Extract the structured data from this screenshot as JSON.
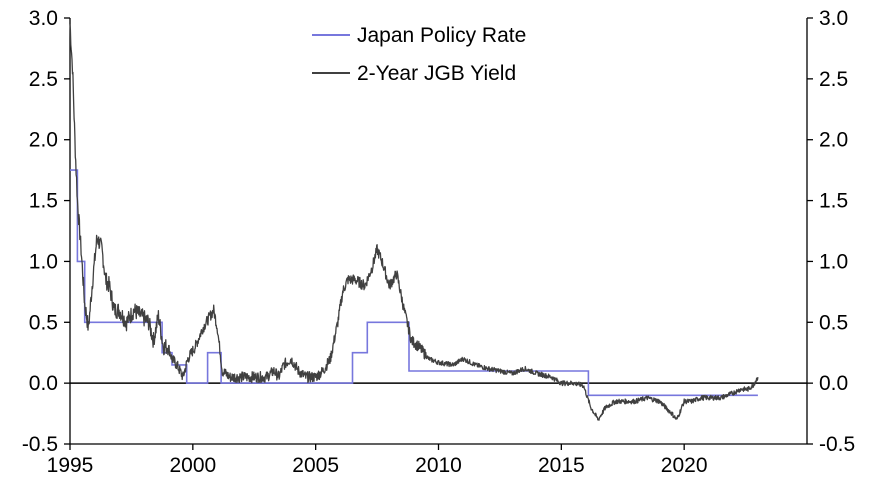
{
  "chart_data": {
    "type": "line",
    "title": "",
    "xlabel": "",
    "ylabel": "",
    "xlim": [
      1995,
      2025
    ],
    "ylim": [
      -0.5,
      3.0
    ],
    "x_ticks": [
      1995,
      2000,
      2005,
      2010,
      2015,
      2020
    ],
    "x_tick_labels": [
      "1995",
      "2000",
      "2005",
      "2010",
      "2015",
      "2020"
    ],
    "y_ticks": [
      -0.5,
      0.0,
      0.5,
      1.0,
      1.5,
      2.0,
      2.5,
      3.0
    ],
    "y_tick_labels": [
      "-0.5",
      "0.0",
      "0.5",
      "1.0",
      "1.5",
      "2.0",
      "2.5",
      "3.0"
    ],
    "legend_position": "top-center",
    "series": [
      {
        "name": "Japan Policy Rate",
        "color": "#7777dd",
        "style": "step",
        "x": [
          1995.0,
          1995.3,
          1995.6,
          1998.75,
          1999.15,
          1999.75,
          2000.6,
          2001.15,
          2006.5,
          2007.1,
          2008.8,
          2016.1,
          2023.0
        ],
        "values": [
          1.75,
          1.0,
          0.5,
          0.25,
          0.15,
          0.0,
          0.25,
          0.0,
          0.25,
          0.5,
          0.1,
          -0.1,
          -0.1
        ]
      },
      {
        "name": "2-Year JGB Yield",
        "color": "#404040",
        "style": "line",
        "x": [
          1995.0,
          1995.1,
          1995.2,
          1995.3,
          1995.45,
          1995.6,
          1995.75,
          1995.9,
          1996.1,
          1996.3,
          1996.45,
          1996.6,
          1996.8,
          1997.0,
          1997.3,
          1997.6,
          1997.9,
          1998.2,
          1998.4,
          1998.6,
          1998.8,
          1999.0,
          1999.15,
          1999.35,
          1999.6,
          1999.8,
          2000.1,
          2000.4,
          2000.7,
          2000.85,
          2001.0,
          2001.2,
          2001.5,
          2002.0,
          2002.5,
          2003.0,
          2003.3,
          2003.5,
          2003.7,
          2004.0,
          2004.3,
          2004.6,
          2005.0,
          2005.3,
          2005.6,
          2005.9,
          2006.1,
          2006.3,
          2006.6,
          2007.0,
          2007.3,
          2007.5,
          2007.7,
          2008.0,
          2008.3,
          2008.6,
          2008.9,
          2009.2,
          2009.6,
          2010.0,
          2010.6,
          2011.0,
          2011.5,
          2012.0,
          2012.5,
          2013.0,
          2013.5,
          2014.0,
          2014.6,
          2015.0,
          2015.5,
          2015.9,
          2016.2,
          2016.5,
          2016.8,
          2017.2,
          2017.6,
          2018.0,
          2018.5,
          2019.0,
          2019.5,
          2019.7,
          2020.0,
          2020.3,
          2020.7,
          2021.0,
          2021.5,
          2022.0,
          2022.3,
          2022.6,
          2022.8,
          2023.0
        ],
        "values": [
          2.95,
          2.6,
          2.0,
          1.5,
          1.1,
          0.65,
          0.45,
          0.8,
          1.2,
          1.1,
          0.85,
          0.8,
          0.6,
          0.6,
          0.5,
          0.6,
          0.55,
          0.5,
          0.35,
          0.55,
          0.3,
          0.3,
          0.2,
          0.15,
          0.05,
          0.2,
          0.3,
          0.45,
          0.55,
          0.6,
          0.45,
          0.1,
          0.05,
          0.05,
          0.05,
          0.05,
          0.1,
          0.05,
          0.15,
          0.2,
          0.1,
          0.05,
          0.05,
          0.1,
          0.2,
          0.5,
          0.75,
          0.85,
          0.85,
          0.8,
          0.95,
          1.1,
          1.0,
          0.8,
          0.9,
          0.6,
          0.35,
          0.3,
          0.2,
          0.17,
          0.15,
          0.2,
          0.15,
          0.12,
          0.1,
          0.08,
          0.12,
          0.08,
          0.05,
          0.0,
          0.0,
          -0.02,
          -0.2,
          -0.3,
          -0.2,
          -0.15,
          -0.15,
          -0.15,
          -0.12,
          -0.15,
          -0.25,
          -0.3,
          -0.15,
          -0.15,
          -0.12,
          -0.12,
          -0.12,
          -0.08,
          -0.05,
          -0.05,
          -0.02,
          0.05
        ]
      }
    ]
  }
}
